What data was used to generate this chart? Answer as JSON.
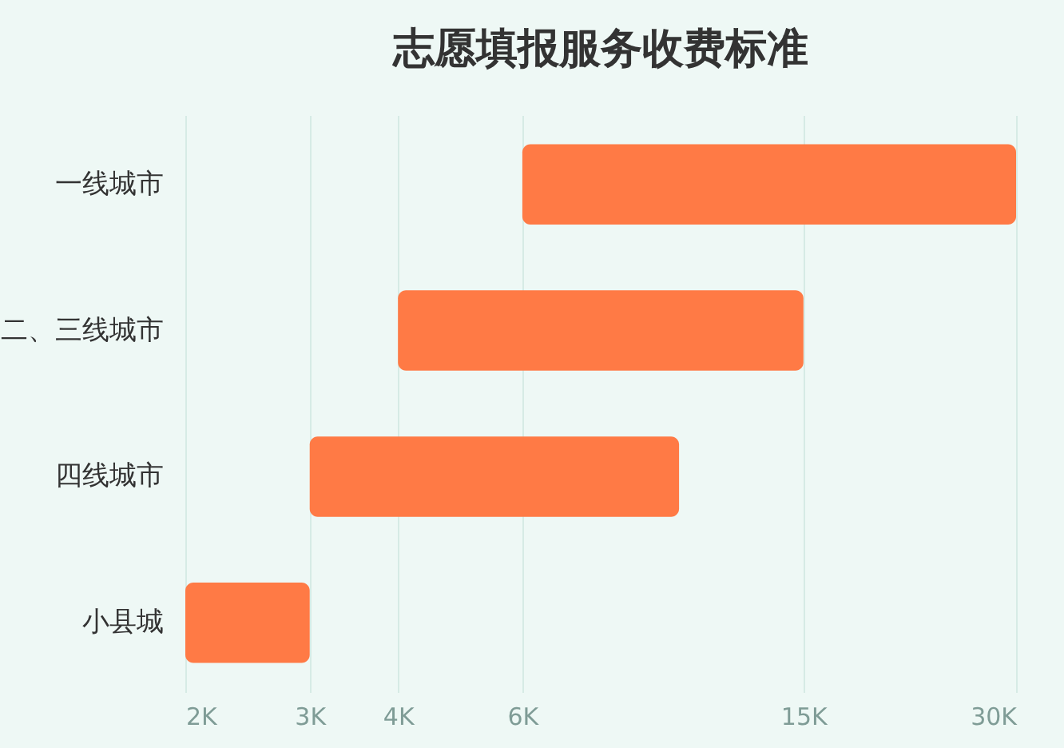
{
  "chart_data": {
    "type": "bar",
    "title": "志愿填报服务收费标准",
    "orientation": "horizontal",
    "categories": [
      "一线城市",
      "二、三线城市",
      "四线城市",
      "小县城"
    ],
    "base": [
      6000,
      4000,
      3000,
      2000
    ],
    "values": [
      24000,
      11000,
      7000,
      1000
    ],
    "color": "#ff7a45",
    "xlim": [
      2000,
      30000
    ],
    "xticks": [
      {
        "value": 2000,
        "label": "2K"
      },
      {
        "value": 3000,
        "label": "3K"
      },
      {
        "value": 4000,
        "label": "4K"
      },
      {
        "value": 6000,
        "label": "6K"
      },
      {
        "value": 15000,
        "label": "15K"
      },
      {
        "value": 30000,
        "label": "30K"
      }
    ],
    "grid": "x",
    "log": "x"
  }
}
